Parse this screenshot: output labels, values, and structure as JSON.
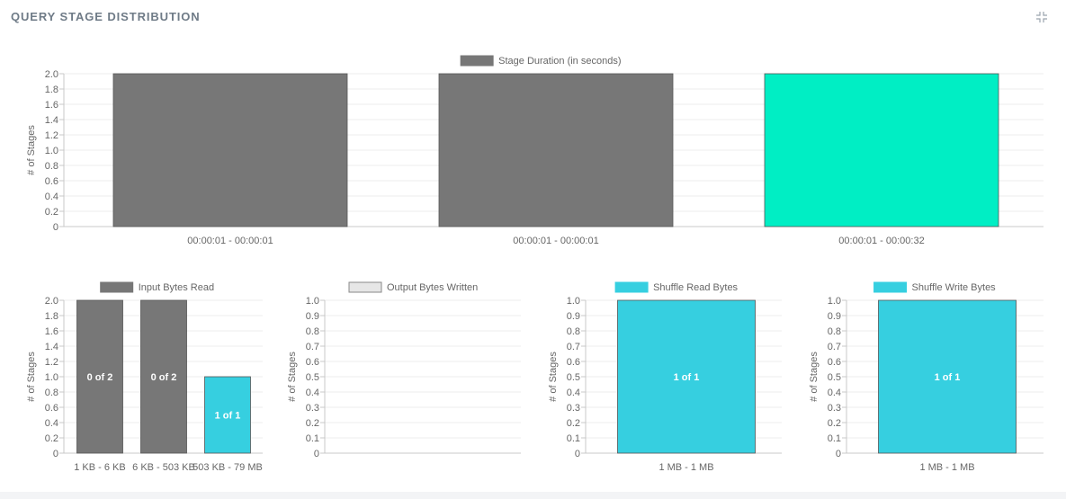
{
  "panel": {
    "title": "QUERY STAGE DISTRIBUTION",
    "collapse_icon": "collapse-icon"
  },
  "chart_data": [
    {
      "type": "bar",
      "id": "stage-duration",
      "legend": "Stage Duration (in seconds)",
      "legend_color": "#777777",
      "ylabel": "# of Stages",
      "ylim": [
        0,
        2.0
      ],
      "yticks": [
        "0",
        "0.2",
        "0.4",
        "0.6",
        "0.8",
        "1.0",
        "1.2",
        "1.4",
        "1.6",
        "1.8",
        "2.0"
      ],
      "categories": [
        "00:00:01 - 00:00:01",
        "00:00:01 - 00:00:01",
        "00:00:01 - 00:00:32"
      ],
      "values": [
        2,
        2,
        2
      ],
      "colors": [
        "#777777",
        "#777777",
        "#00eec4"
      ],
      "bar_labels": [
        "",
        "",
        ""
      ],
      "grid": true
    },
    {
      "type": "bar",
      "id": "input-bytes",
      "legend": "Input Bytes Read",
      "legend_color": "#777777",
      "ylabel": "# of Stages",
      "ylim": [
        0,
        2.0
      ],
      "yticks": [
        "0",
        "0.2",
        "0.4",
        "0.6",
        "0.8",
        "1.0",
        "1.2",
        "1.4",
        "1.6",
        "1.8",
        "2.0"
      ],
      "categories": [
        "1 KB - 6 KB",
        "6 KB - 503 KB",
        "503 KB - 79 MB"
      ],
      "values": [
        2,
        2,
        1
      ],
      "colors": [
        "#777777",
        "#777777",
        "#36cfe0"
      ],
      "bar_labels": [
        "0 of 2",
        "0 of 2",
        "1 of 1"
      ],
      "grid": true
    },
    {
      "type": "bar",
      "id": "output-bytes",
      "legend": "Output Bytes Written",
      "legend_color": "#e6e6e6",
      "ylabel": "# of Stages",
      "ylim": [
        0,
        1.0
      ],
      "yticks": [
        "0",
        "0.1",
        "0.2",
        "0.3",
        "0.4",
        "0.5",
        "0.6",
        "0.7",
        "0.8",
        "0.9",
        "1.0"
      ],
      "categories": [],
      "values": [],
      "colors": [],
      "bar_labels": [],
      "grid": true
    },
    {
      "type": "bar",
      "id": "shuffle-read",
      "legend": "Shuffle Read Bytes",
      "legend_color": "#36cfe0",
      "ylabel": "# of Stages",
      "ylim": [
        0,
        1.0
      ],
      "yticks": [
        "0",
        "0.1",
        "0.2",
        "0.3",
        "0.4",
        "0.5",
        "0.6",
        "0.7",
        "0.8",
        "0.9",
        "1.0"
      ],
      "categories": [
        "1 MB - 1 MB"
      ],
      "values": [
        1
      ],
      "colors": [
        "#36cfe0"
      ],
      "bar_labels": [
        "1 of 1"
      ],
      "grid": true
    },
    {
      "type": "bar",
      "id": "shuffle-write",
      "legend": "Shuffle Write Bytes",
      "legend_color": "#36cfe0",
      "ylabel": "# of Stages",
      "ylim": [
        0,
        1.0
      ],
      "yticks": [
        "0",
        "0.1",
        "0.2",
        "0.3",
        "0.4",
        "0.5",
        "0.6",
        "0.7",
        "0.8",
        "0.9",
        "1.0"
      ],
      "categories": [
        "1 MB - 1 MB"
      ],
      "values": [
        1
      ],
      "colors": [
        "#36cfe0"
      ],
      "bar_labels": [
        "1 of 1"
      ],
      "grid": true
    }
  ]
}
